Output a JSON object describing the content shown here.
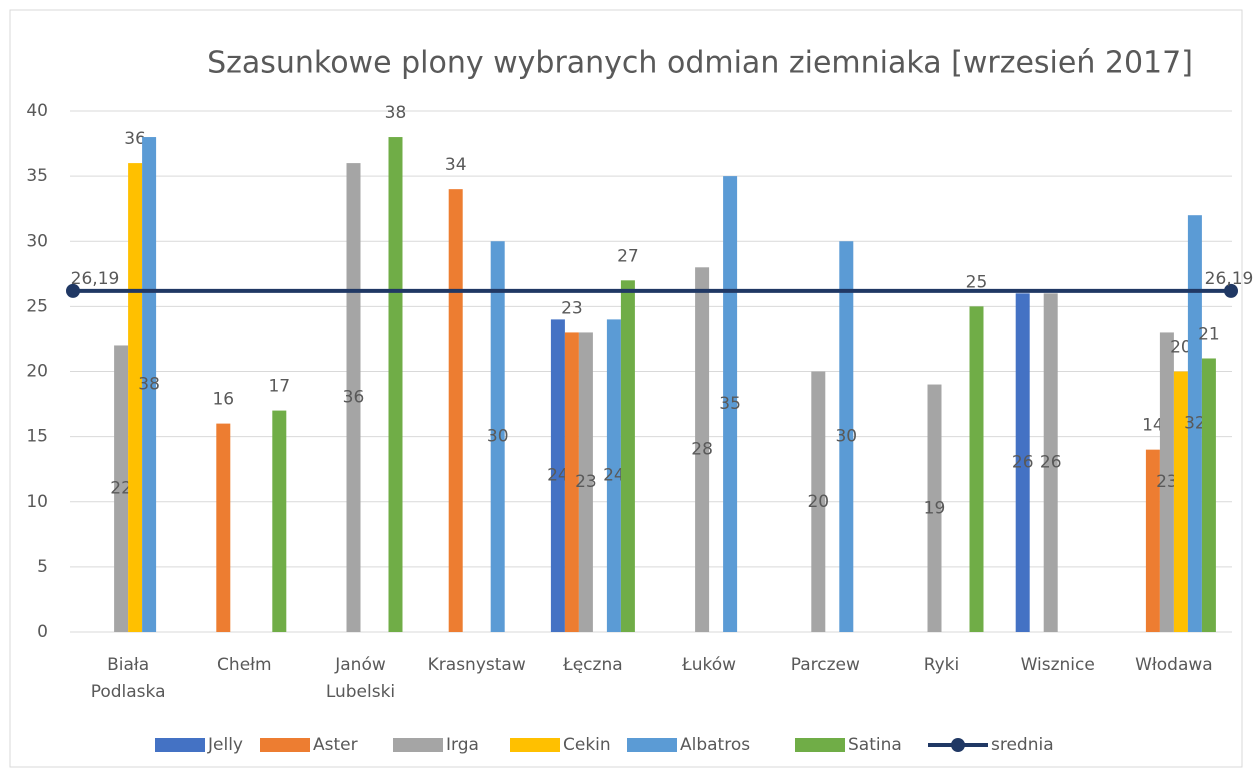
{
  "chart_data": {
    "type": "bar",
    "title": "Szasunkowe plony wybranych odmian ziemniaka [wrzesień 2017]",
    "categories": [
      "Biała Podlaska",
      "Chełm",
      "Janów Lubelski",
      "Krasnystaw",
      "Łęczna",
      "Łuków",
      "Parczew",
      "Ryki",
      "Wisznice",
      "Włodawa"
    ],
    "series": [
      {
        "name": "Jelly",
        "color": "#4472c4",
        "values": [
          null,
          null,
          null,
          null,
          24,
          null,
          null,
          null,
          26,
          null
        ]
      },
      {
        "name": "Aster",
        "color": "#ed7d31",
        "values": [
          null,
          16,
          null,
          34,
          23,
          null,
          null,
          null,
          null,
          14
        ]
      },
      {
        "name": "Irga",
        "color": "#a5a5a5",
        "values": [
          22,
          null,
          36,
          null,
          23,
          28,
          20,
          19,
          26,
          23
        ]
      },
      {
        "name": "Cekin",
        "color": "#ffc000",
        "values": [
          36,
          null,
          null,
          null,
          null,
          null,
          null,
          null,
          null,
          20
        ]
      },
      {
        "name": "Albatros",
        "color": "#5b9bd5",
        "values": [
          38,
          null,
          null,
          30,
          24,
          35,
          30,
          null,
          null,
          32
        ]
      },
      {
        "name": "Satina",
        "color": "#70ad47",
        "values": [
          null,
          17,
          38,
          null,
          27,
          null,
          null,
          25,
          null,
          21
        ]
      }
    ],
    "mean_line": {
      "type": "line",
      "name": "srednia",
      "color": "#203864",
      "value": 26.19,
      "value_label": "26,19"
    },
    "ylim": [
      0,
      40
    ],
    "yticks": [
      0,
      5,
      10,
      15,
      20,
      25,
      30,
      35,
      40
    ],
    "grid": true,
    "legend": "bottom"
  }
}
